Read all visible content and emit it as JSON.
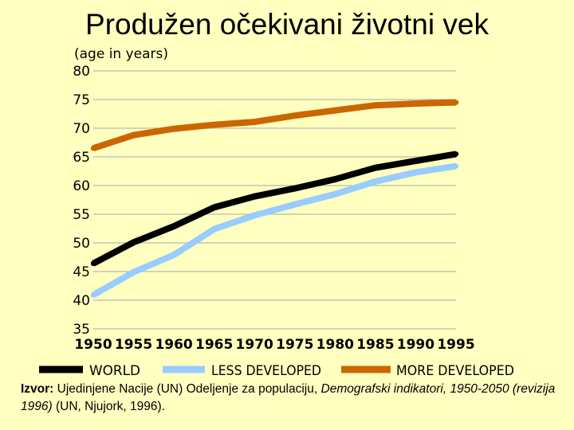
{
  "title": "Produžen očekivani životni vek",
  "colors": {
    "background": "#ffffc0",
    "world": "#000000",
    "less_developed": "#99ccff",
    "more_developed": "#cc6600",
    "grid": "#b8b8b8"
  },
  "chart_data": {
    "type": "line",
    "ylabel": "(age in years)",
    "xlabel": "",
    "ylim": [
      35,
      80
    ],
    "yticks": [
      "80",
      "75",
      "70",
      "65",
      "60",
      "55",
      "50",
      "45",
      "40",
      "35"
    ],
    "x": [
      1950,
      1955,
      1960,
      1965,
      1970,
      1975,
      1980,
      1985,
      1990,
      1995
    ],
    "xtick_labels": [
      "1950",
      "1955",
      "1960",
      "1965",
      "1970",
      "1975",
      "1980",
      "1985",
      "1990",
      "1995"
    ],
    "grid": true,
    "legend_position": "bottom",
    "series": [
      {
        "name": "WORLD",
        "key": "world",
        "values": [
          46.4,
          50.1,
          52.9,
          56.2,
          58.1,
          59.5,
          61.1,
          63.1,
          64.3,
          65.5
        ]
      },
      {
        "name": "LESS DEVELOPED",
        "key": "less_developed",
        "values": [
          40.9,
          44.9,
          47.9,
          52.4,
          54.8,
          56.7,
          58.5,
          60.7,
          62.3,
          63.4
        ]
      },
      {
        "name": "MORE DEVELOPED",
        "key": "more_developed",
        "values": [
          66.5,
          68.8,
          69.9,
          70.6,
          71.1,
          72.2,
          73.1,
          74.0,
          74.3,
          74.5
        ]
      }
    ]
  },
  "source": {
    "label": "Izvor:",
    "text_plain": " Ujedinjene Nacije (UN) Odeljenje za populaciju, ",
    "text_italic": "Demografski indikatori, 1950-2050 (revizija 1996)",
    "text_end": " (UN, Njujork, 1996)."
  }
}
